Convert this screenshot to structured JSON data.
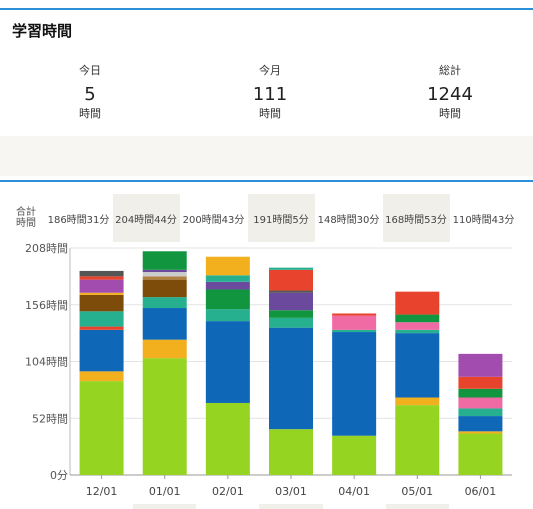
{
  "title": "学習時間",
  "stats": [
    {
      "label": "今日",
      "value": "5",
      "unit": "時間"
    },
    {
      "label": "今月",
      "value": "111",
      "unit": "時間"
    },
    {
      "label": "総計",
      "value": "1244",
      "unit": "時間"
    }
  ],
  "totals_label": "合計\n時間",
  "colors": {
    "accent_rule": "#2d8fd6",
    "shade": "#f0efea",
    "band": "#f7f6f2"
  },
  "chart_data": {
    "type": "bar",
    "stacked": true,
    "categories": [
      "12/01",
      "01/01",
      "02/01",
      "03/01",
      "04/01",
      "05/01",
      "06/01"
    ],
    "totals": [
      "186時間31分",
      "204時間44分",
      "200時間43分",
      "191時間5分",
      "148時間30分",
      "168時間53分",
      "110時間43分"
    ],
    "y_ticks": [
      "0分",
      "52時間",
      "104時間",
      "156時間",
      "208時間"
    ],
    "ylim": [
      0,
      208
    ],
    "grid": true,
    "segments": [
      [
        {
          "value": 86,
          "color": "#95d421"
        },
        {
          "value": 9,
          "color": "#f2b01e"
        },
        {
          "value": 38,
          "color": "#0f67b8"
        },
        {
          "value": 3,
          "color": "#e8442d"
        },
        {
          "value": 14,
          "color": "#26b08f"
        },
        {
          "value": 15,
          "color": "#7d4b0a"
        },
        {
          "value": 2,
          "color": "#f2b01e"
        },
        {
          "value": 12,
          "color": "#a34cb0"
        },
        {
          "value": 3,
          "color": "#e8442d"
        },
        {
          "value": 5,
          "color": "#555555"
        }
      ],
      [
        {
          "value": 107,
          "color": "#95d421"
        },
        {
          "value": 17,
          "color": "#f2b01e"
        },
        {
          "value": 29,
          "color": "#0f67b8"
        },
        {
          "value": 10,
          "color": "#26b08f"
        },
        {
          "value": 16,
          "color": "#7d4b0a"
        },
        {
          "value": 3,
          "color": "#b08040"
        },
        {
          "value": 4,
          "color": "#cccccc"
        },
        {
          "value": 2,
          "color": "#6b4a9e"
        },
        {
          "value": 17,
          "color": "#11963f"
        }
      ],
      [
        {
          "value": 66,
          "color": "#95d421"
        },
        {
          "value": 75,
          "color": "#0f67b8"
        },
        {
          "value": 11,
          "color": "#26b08f"
        },
        {
          "value": 18,
          "color": "#11963f"
        },
        {
          "value": 7,
          "color": "#6b4a9e"
        },
        {
          "value": 6,
          "color": "#26b08f"
        },
        {
          "value": 17,
          "color": "#f2b01e"
        }
      ],
      [
        {
          "value": 42,
          "color": "#95d421"
        },
        {
          "value": 93,
          "color": "#0f67b8"
        },
        {
          "value": 9,
          "color": "#26b08f"
        },
        {
          "value": 7,
          "color": "#11963f"
        },
        {
          "value": 16,
          "color": "#6b4a9e"
        },
        {
          "value": 2,
          "color": "#555555"
        },
        {
          "value": 19,
          "color": "#e8442d"
        },
        {
          "value": 2,
          "color": "#26b08f"
        }
      ],
      [
        {
          "value": 36,
          "color": "#95d421"
        },
        {
          "value": 95,
          "color": "#0f67b8"
        },
        {
          "value": 2,
          "color": "#26b08f"
        },
        {
          "value": 13,
          "color": "#f06aa3"
        },
        {
          "value": 2,
          "color": "#e8442d"
        }
      ],
      [
        {
          "value": 64,
          "color": "#95d421"
        },
        {
          "value": 7,
          "color": "#f2b01e"
        },
        {
          "value": 59,
          "color": "#0f67b8"
        },
        {
          "value": 3,
          "color": "#26b08f"
        },
        {
          "value": 7,
          "color": "#f06aa3"
        },
        {
          "value": 7,
          "color": "#11963f"
        },
        {
          "value": 21,
          "color": "#e8442d"
        }
      ],
      [
        {
          "value": 38,
          "color": "#95d421"
        },
        {
          "value": 2,
          "color": "#f2b01e"
        },
        {
          "value": 14,
          "color": "#0f67b8"
        },
        {
          "value": 7,
          "color": "#26b08f"
        },
        {
          "value": 10,
          "color": "#f06aa3"
        },
        {
          "value": 8,
          "color": "#11963f"
        },
        {
          "value": 11,
          "color": "#e8442d"
        },
        {
          "value": 21,
          "color": "#a34cb0"
        }
      ]
    ]
  }
}
